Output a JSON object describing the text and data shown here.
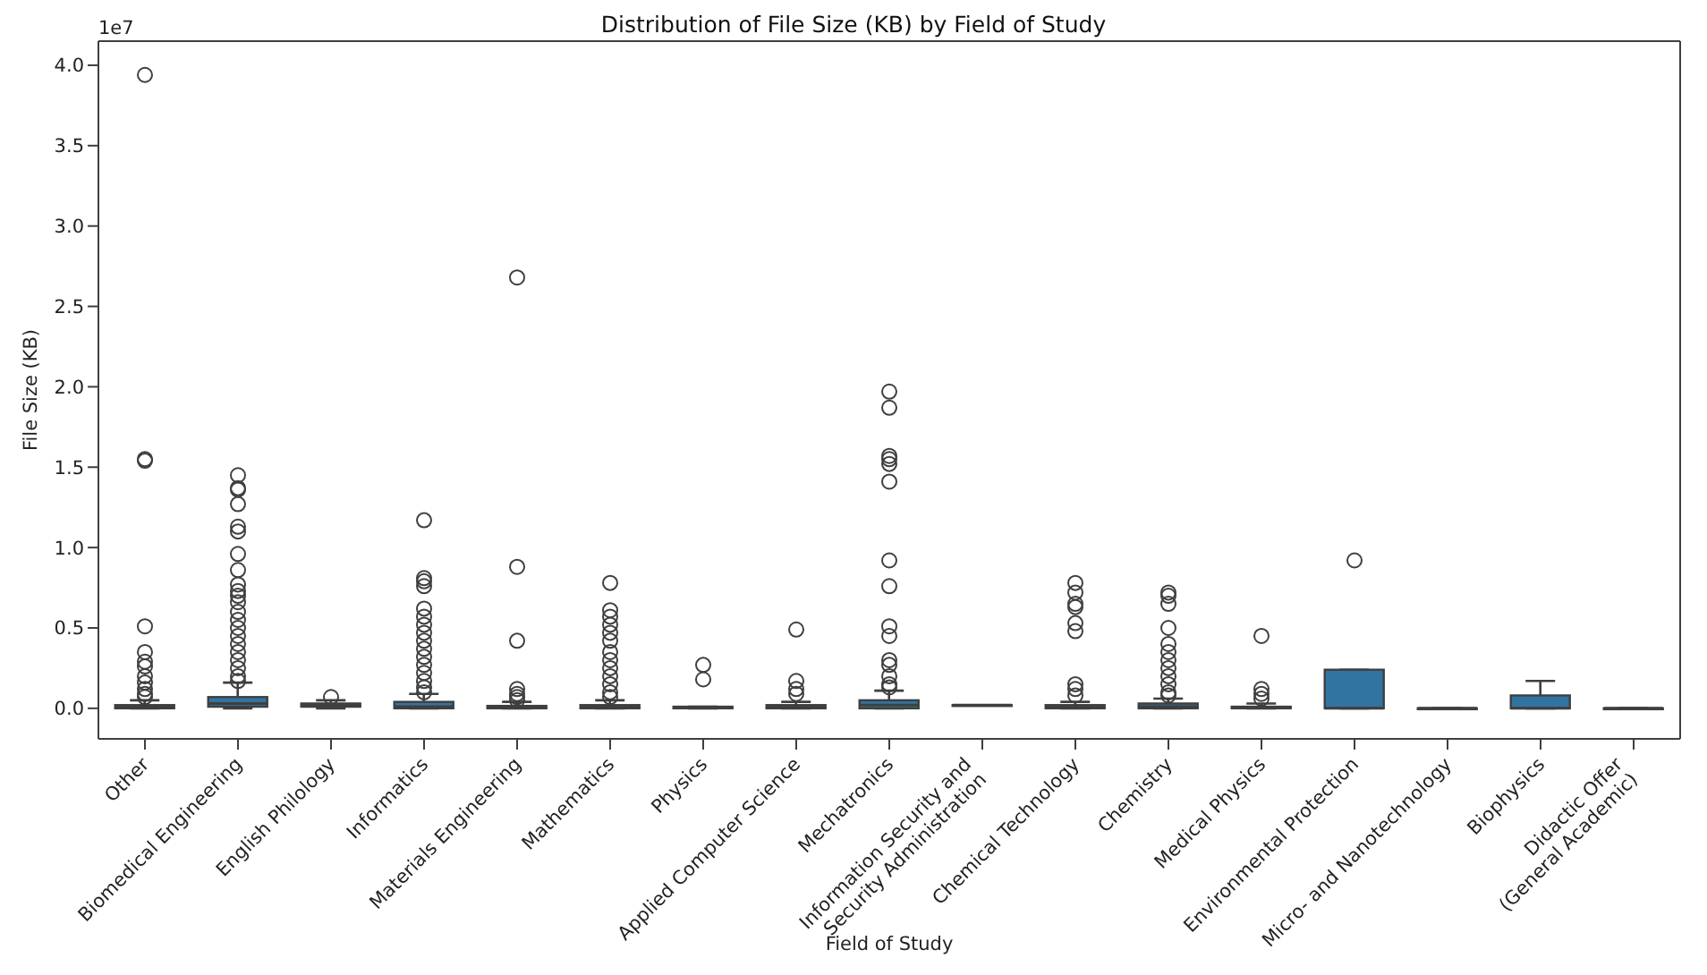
{
  "chart_data": {
    "type": "box",
    "title": "Distribution of File Size (KB) by Field of Study",
    "xlabel": "Field of Study",
    "ylabel": "File Size (KB)",
    "annotations": [
      "1e7"
    ],
    "categories": [
      "Other",
      "Biomedical Engineering",
      "English Philology",
      "Informatics",
      "Materials Engineering",
      "Mathematics",
      "Physics",
      "Applied Computer Science",
      "Mechatronics",
      "Information Security and\nSecurity Administration",
      "Chemical Technology",
      "Chemistry",
      "Medical Physics",
      "Environmental Protection",
      "Micro- and Nanotechnology",
      "Biophysics",
      "Didactic Offer\n(General Academic)"
    ],
    "color": "#3274a1",
    "ylim": [
      -0.19,
      4.15
    ],
    "yticks": [
      {
        "value": 0,
        "label": "0.0"
      },
      {
        "value": 0.5,
        "label": "0.5"
      },
      {
        "value": 1,
        "label": "1.0"
      },
      {
        "value": 1.5,
        "label": "1.5"
      },
      {
        "value": 2,
        "label": "2.0"
      },
      {
        "value": 2.5,
        "label": "2.5"
      },
      {
        "value": 3,
        "label": "3.0"
      },
      {
        "value": 3.5,
        "label": "3.5"
      },
      {
        "value": 4,
        "label": "4.0"
      }
    ],
    "marker": "circle",
    "boxes": [
      {
        "low": 0,
        "q1": 0,
        "median": 0.01,
        "q3": 0.02,
        "high": 0.05,
        "outliers": [
          3.94,
          1.55,
          1.54,
          0.51,
          0.35,
          0.29,
          0.26,
          0.2,
          0.16,
          0.12,
          0.09,
          0.07
        ]
      },
      {
        "low": 0,
        "q1": 0.01,
        "median": 0.03,
        "q3": 0.07,
        "high": 0.16,
        "outliers": [
          1.45,
          1.37,
          1.36,
          1.27,
          1.13,
          1.1,
          0.96,
          0.86,
          0.77,
          0.73,
          0.7,
          0.66,
          0.6,
          0.55,
          0.5,
          0.45,
          0.4,
          0.35,
          0.3,
          0.25,
          0.2,
          0.17
        ]
      },
      {
        "low": 0,
        "q1": 0.01,
        "median": 0.02,
        "q3": 0.03,
        "high": 0.05,
        "outliers": [
          0.07
        ]
      },
      {
        "low": 0,
        "q1": 0,
        "median": 0.01,
        "q3": 0.04,
        "high": 0.09,
        "outliers": [
          1.17,
          0.81,
          0.79,
          0.76,
          0.62,
          0.57,
          0.52,
          0.47,
          0.42,
          0.37,
          0.32,
          0.27,
          0.22,
          0.17,
          0.13,
          0.1
        ]
      },
      {
        "low": 0,
        "q1": 0,
        "median": 0.005,
        "q3": 0.015,
        "high": 0.04,
        "outliers": [
          2.68,
          0.88,
          0.42,
          0.12,
          0.09,
          0.07,
          0.05
        ]
      },
      {
        "low": 0,
        "q1": 0,
        "median": 0.01,
        "q3": 0.02,
        "high": 0.05,
        "outliers": [
          0.78,
          0.61,
          0.57,
          0.52,
          0.47,
          0.42,
          0.35,
          0.3,
          0.25,
          0.2,
          0.15,
          0.1,
          0.07
        ]
      },
      {
        "low": 0,
        "q1": 0,
        "median": 0.005,
        "q3": 0.01,
        "high": 0.01,
        "outliers": [
          0.27,
          0.18
        ]
      },
      {
        "low": 0,
        "q1": 0,
        "median": 0.01,
        "q3": 0.02,
        "high": 0.04,
        "outliers": [
          0.49,
          0.17,
          0.12,
          0.09
        ]
      },
      {
        "low": 0,
        "q1": 0,
        "median": 0.02,
        "q3": 0.05,
        "high": 0.11,
        "outliers": [
          1.97,
          1.87,
          1.57,
          1.55,
          1.52,
          1.41,
          0.92,
          0.76,
          0.51,
          0.45,
          0.3,
          0.27,
          0.2,
          0.15,
          0.13
        ]
      },
      {
        "low": 0.02,
        "q1": 0.02,
        "median": 0.02,
        "q3": 0.02,
        "high": 0.02
      },
      {
        "low": 0,
        "q1": 0,
        "median": 0.01,
        "q3": 0.02,
        "high": 0.04,
        "outliers": [
          0.78,
          0.72,
          0.65,
          0.63,
          0.53,
          0.48,
          0.15,
          0.12,
          0.08
        ]
      },
      {
        "low": 0,
        "q1": 0,
        "median": 0.01,
        "q3": 0.03,
        "high": 0.06,
        "outliers": [
          0.72,
          0.7,
          0.65,
          0.5,
          0.4,
          0.35,
          0.3,
          0.25,
          0.2,
          0.15,
          0.1,
          0.08
        ]
      },
      {
        "low": 0,
        "q1": 0,
        "median": 0.005,
        "q3": 0.01,
        "high": 0.03,
        "outliers": [
          0.45,
          0.12,
          0.09,
          0.06
        ]
      },
      {
        "low": 0,
        "q1": 0,
        "median": 0,
        "q3": 0.24,
        "high": 0.24,
        "outliers": [
          0.92
        ]
      },
      {
        "low": 0,
        "q1": 0,
        "median": 0,
        "q3": 0,
        "high": 0
      },
      {
        "low": 0,
        "q1": 0,
        "median": 0,
        "q3": 0.08,
        "high": 0.17
      },
      {
        "low": 0,
        "q1": 0,
        "median": 0,
        "q3": 0,
        "high": 0
      }
    ]
  }
}
